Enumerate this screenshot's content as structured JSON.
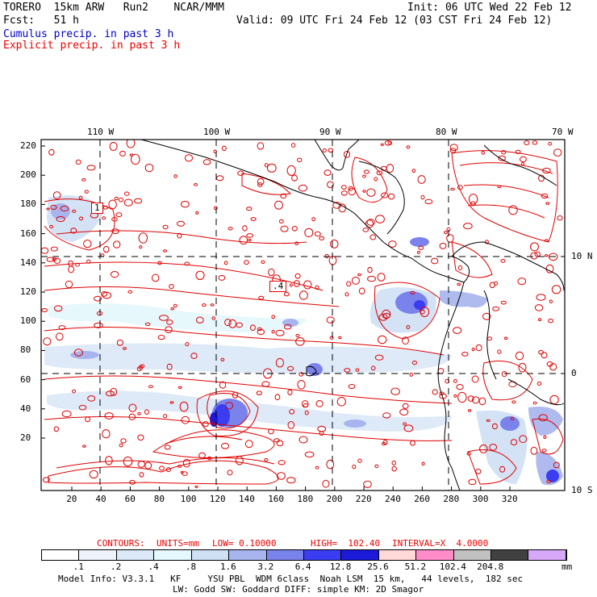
{
  "header": {
    "model": "TORERO  15km ARW   Run2    NCAR/MMM",
    "init": "Init: 06 UTC Wed 22 Feb 12",
    "fcst": "Fcst:   51 h",
    "valid": "Valid: 09 UTC Fri 24 Feb 12 (03 CST Fri 24 Feb 12)",
    "cumulus_label": "Cumulus precip. in past 3 h",
    "explicit_label": "Explicit precip. in past 3 h"
  },
  "map": {
    "top_longitudes": [
      "110 W",
      "100 W",
      "90 W",
      "80 W",
      "70 W"
    ],
    "right_latitudes": [
      "10 N",
      "0",
      "10 S"
    ],
    "y_ticks": [
      "220",
      "200",
      "180",
      "160",
      "140",
      "120",
      "100",
      "80",
      "60",
      "40",
      "20"
    ],
    "x_ticks": [
      "20",
      "40",
      "60",
      "80",
      "100",
      "120",
      "140",
      "160",
      "180",
      "200",
      "220",
      "240",
      "260",
      "280",
      "300",
      "320"
    ],
    "inline_labels": [
      "1",
      ".4"
    ]
  },
  "contour_info": {
    "contours": "CONTOURS:",
    "units": "UNITS=mm",
    "low": "LOW= 0.10000",
    "high": "HIGH=  102.40",
    "interval": "INTERVAL=X  4.0000"
  },
  "colorbar": {
    "labels": [
      ".1",
      ".2",
      ".4",
      ".8",
      "1.6",
      "3.2",
      "6.4",
      "12.8",
      "25.6",
      "51.2",
      "102.4",
      "204.8"
    ],
    "unit": "mm",
    "colors": [
      "#ffffff",
      "#eef3fb",
      "#dbe8f7",
      "#e5f8fd",
      "#cfe0f5",
      "#a7b4ee",
      "#7a82ec",
      "#3a3df0",
      "#1a1ad8",
      "#ffd8d8",
      "#ff8cc8",
      "#c0c0c0",
      "#404040",
      "#d8a8f8"
    ]
  },
  "footer": {
    "line1": "Model Info: V3.3.1   KF     YSU PBL  WDM 6class  Noah LSM  15 km,   44 levels,  182 sec",
    "line2": "LW: Godd SW: Goddard DIFF: simple KM: 2D Smagor"
  }
}
